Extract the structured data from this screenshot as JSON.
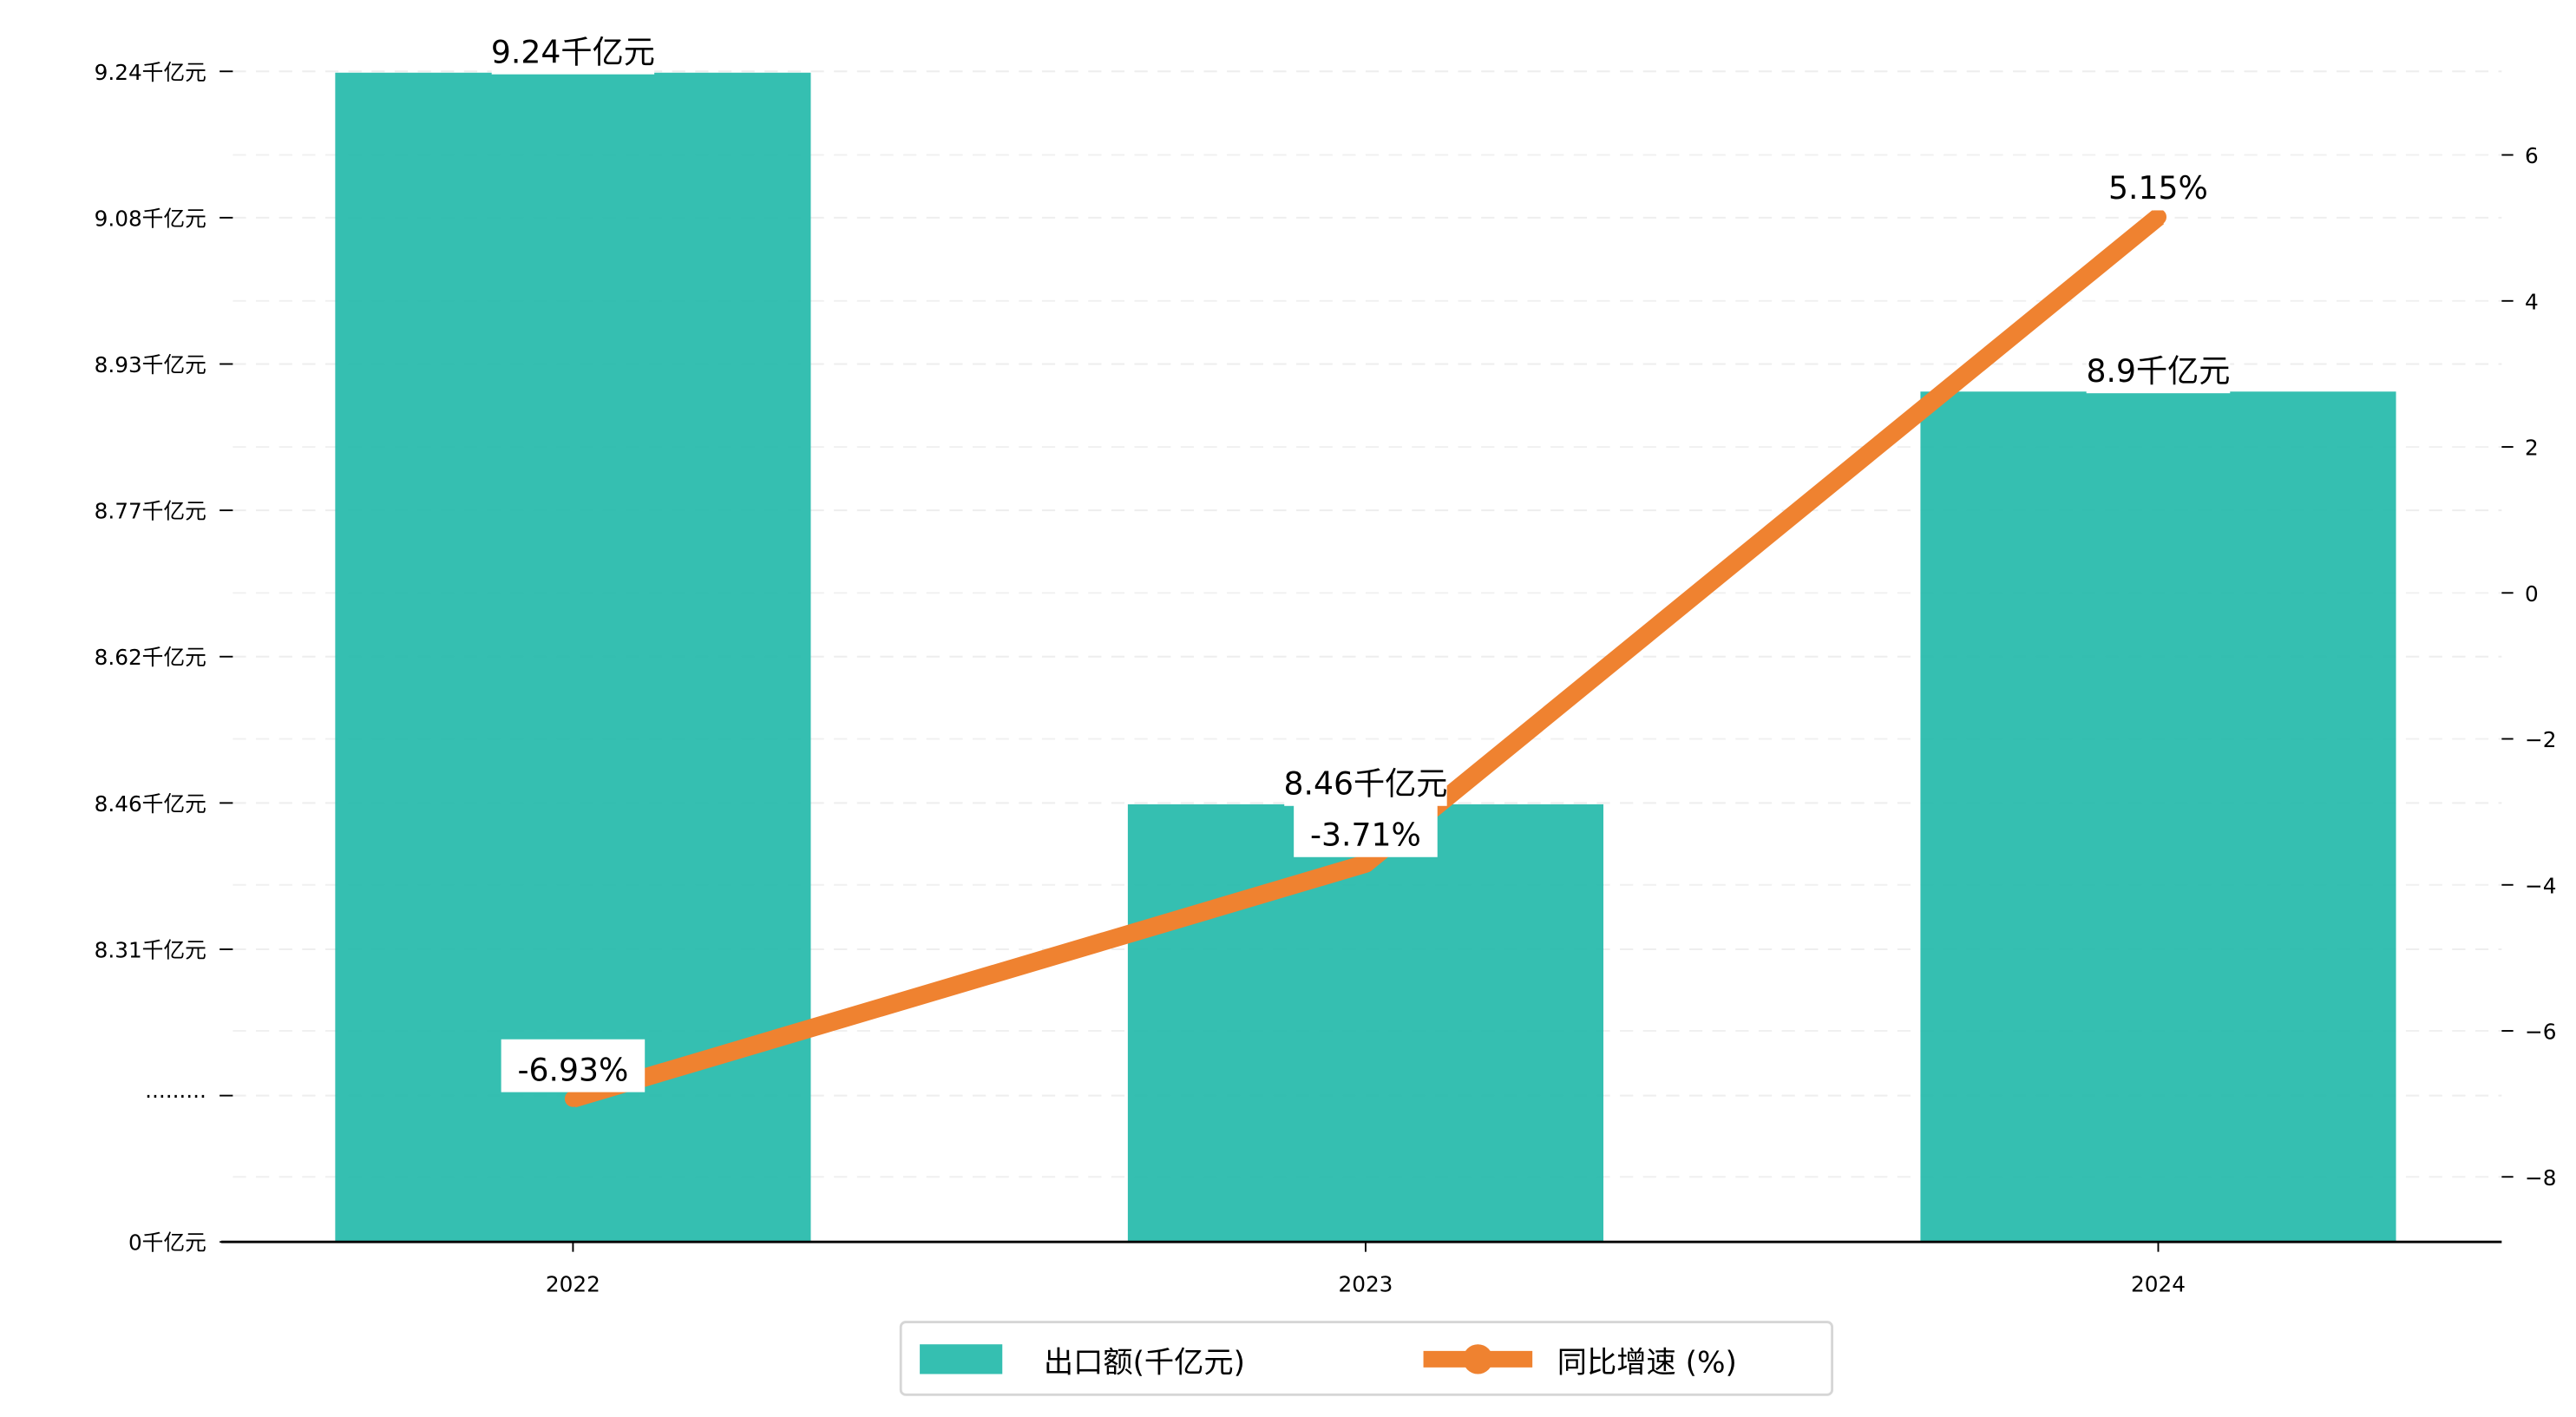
{
  "chart_data": {
    "type": "bar+line",
    "categories": [
      "2022",
      "2023",
      "2024"
    ],
    "series": [
      {
        "name": "出口额(千亿元)",
        "type": "bar",
        "axis": "left",
        "values": [
          9.24,
          8.46,
          8.9
        ],
        "labels": [
          "9.24千亿元",
          "8.46千亿元",
          "8.9千亿元"
        ],
        "color": "#1fb8a8"
      },
      {
        "name": "同比增速 (%)",
        "type": "line",
        "axis": "right",
        "values": [
          -6.93,
          -3.71,
          5.15
        ],
        "labels": [
          "-6.93%",
          "-3.71%",
          "5.15%"
        ],
        "color": "#ef8230"
      }
    ],
    "left_axis": {
      "ticks": [
        0,
        8.155,
        8.31,
        8.46,
        8.62,
        8.77,
        8.93,
        9.08,
        9.24
      ],
      "tick_labels": [
        "0千亿元",
        "·········",
        "8.31千亿元",
        "8.46千亿元",
        "8.62千亿元",
        "8.77千亿元",
        "8.93千亿元",
        "9.08千亿元",
        "9.24千亿元"
      ],
      "broken": true
    },
    "right_axis": {
      "ticks": [
        -8,
        -6,
        -4,
        -2,
        0,
        2,
        4,
        6
      ],
      "tick_labels": [
        "−8",
        "−6",
        "−4",
        "−2",
        "0",
        "2",
        "4",
        "6"
      ],
      "ylim": [
        -9,
        8.9
      ]
    },
    "grid": true,
    "legend_position": "bottom-center",
    "legend": [
      "出口额(千亿元)",
      "同比增速 (%)"
    ]
  }
}
